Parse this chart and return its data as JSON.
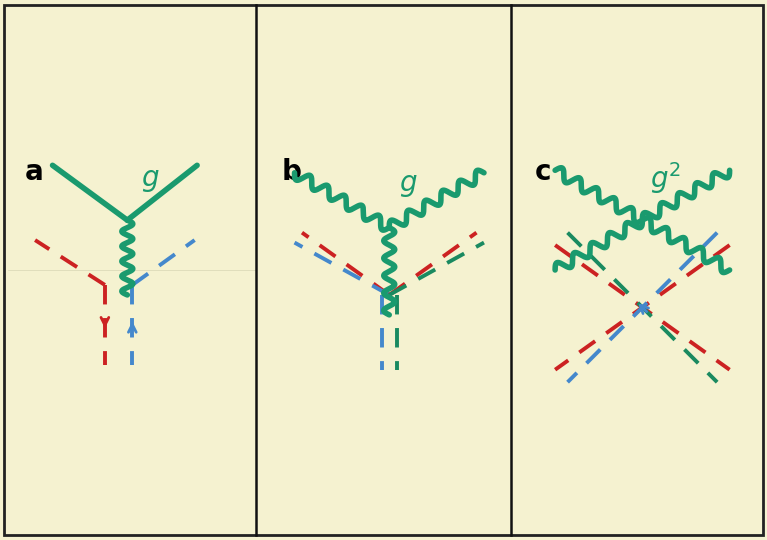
{
  "bg_color": "#f5f2d0",
  "border_color": "#222222",
  "green_color": "#1a9a6e",
  "red_color": "#cc2222",
  "blue_color": "#4488cc",
  "teal_color": "#1a8a60",
  "fig_width": 7.67,
  "fig_height": 5.4,
  "panel_labels": [
    "a",
    "b",
    "c"
  ],
  "panel_label_fontsize": 20,
  "coupling_g_fontsize": 20,
  "divider_color": "#111111"
}
